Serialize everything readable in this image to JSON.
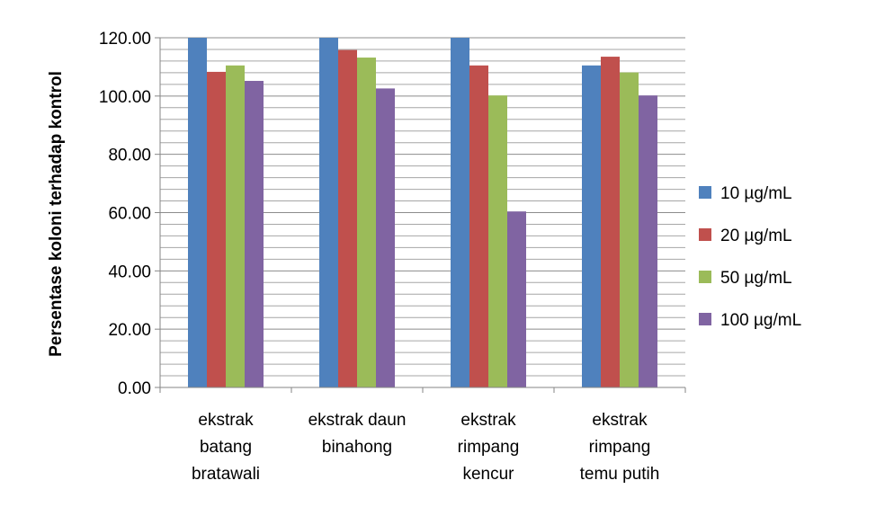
{
  "chart_data": {
    "type": "bar",
    "title": "",
    "xlabel": "",
    "ylabel": "Persentase koloni terhadap kontrol",
    "ylim": [
      0,
      120
    ],
    "yticks": [
      "0.00",
      "20.00",
      "40.00",
      "60.00",
      "80.00",
      "100.00",
      "120.00"
    ],
    "grid": true,
    "legend_position": "right",
    "categories": [
      [
        "ekstrak",
        "batang",
        "bratawali"
      ],
      [
        "ekstrak daun",
        "binahong"
      ],
      [
        "ekstrak",
        "rimpang",
        "kencur"
      ],
      [
        "ekstrak",
        "rimpang",
        "temu putih"
      ]
    ],
    "series": [
      {
        "name": "10 µg/mL",
        "color": "#4f81bd",
        "values": [
          125,
          125,
          125,
          110.5
        ]
      },
      {
        "name": "20 µg/mL",
        "color": "#c0504d",
        "values": [
          108.3,
          115.8,
          110.5,
          113.5
        ]
      },
      {
        "name": "50 µg/mL",
        "color": "#9bbb59",
        "values": [
          110.5,
          113.2,
          100.2,
          108.1
        ]
      },
      {
        "name": "100 µg/mL",
        "color": "#8064a2",
        "values": [
          105.2,
          102.6,
          60.4,
          100.2
        ]
      }
    ]
  }
}
